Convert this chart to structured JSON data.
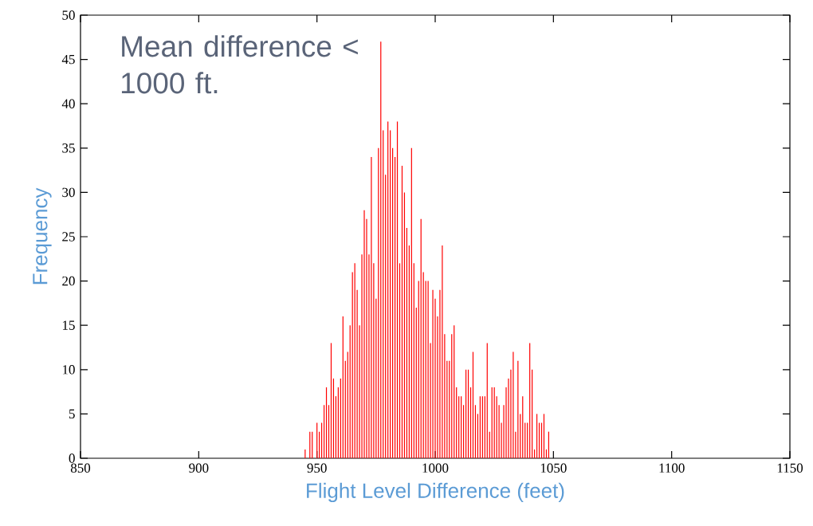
{
  "chart_data": {
    "type": "bar",
    "xlabel": "Flight Level Difference (feet)",
    "ylabel": "Frequency",
    "annotations": [
      "Mean difference < 1000 ft."
    ],
    "x": [
      945,
      946,
      947,
      948,
      949,
      950,
      951,
      952,
      953,
      954,
      955,
      956,
      957,
      958,
      959,
      960,
      961,
      962,
      963,
      964,
      965,
      966,
      967,
      968,
      969,
      970,
      971,
      972,
      973,
      974,
      975,
      976,
      977,
      978,
      979,
      980,
      981,
      982,
      983,
      984,
      985,
      986,
      987,
      988,
      989,
      990,
      991,
      992,
      993,
      994,
      995,
      996,
      997,
      998,
      999,
      1000,
      1001,
      1002,
      1003,
      1004,
      1005,
      1006,
      1007,
      1008,
      1009,
      1010,
      1011,
      1012,
      1013,
      1014,
      1015,
      1016,
      1017,
      1018,
      1019,
      1020,
      1021,
      1022,
      1023,
      1024,
      1025,
      1026,
      1027,
      1028,
      1029,
      1030,
      1031,
      1032,
      1033,
      1034,
      1035,
      1036,
      1037,
      1038,
      1039,
      1040,
      1041,
      1042,
      1043,
      1044,
      1045,
      1046,
      1047,
      1048
    ],
    "values": [
      1,
      null,
      3,
      3,
      null,
      4,
      3,
      4,
      6,
      8,
      6,
      13,
      9,
      7,
      8,
      9,
      16,
      11,
      12,
      15,
      21,
      22,
      19,
      15,
      23,
      28,
      27,
      23,
      34,
      22,
      18,
      35,
      47,
      37,
      32,
      38,
      37,
      35,
      34,
      38,
      22,
      33,
      30,
      26,
      24,
      35,
      22,
      17,
      20,
      27,
      21,
      20,
      20,
      13,
      19,
      18,
      16,
      19,
      24,
      14,
      11,
      11,
      14,
      15,
      8,
      7,
      7,
      6,
      10,
      10,
      8,
      12,
      6,
      5,
      7,
      7,
      7,
      13,
      3,
      8,
      8,
      7,
      6,
      4,
      6,
      8,
      9,
      10,
      12,
      3,
      11,
      5,
      7,
      4,
      4,
      13,
      10,
      1,
      5,
      4,
      4,
      5,
      1,
      3
    ],
    "color": "#ff0000",
    "xlim": [
      850,
      1150
    ],
    "xticks": [
      850,
      900,
      950,
      1000,
      1050,
      1100,
      1150
    ],
    "ylim": [
      0,
      50
    ],
    "yticks": [
      0,
      5,
      10,
      15,
      20,
      25,
      30,
      35,
      40,
      45,
      50
    ]
  }
}
